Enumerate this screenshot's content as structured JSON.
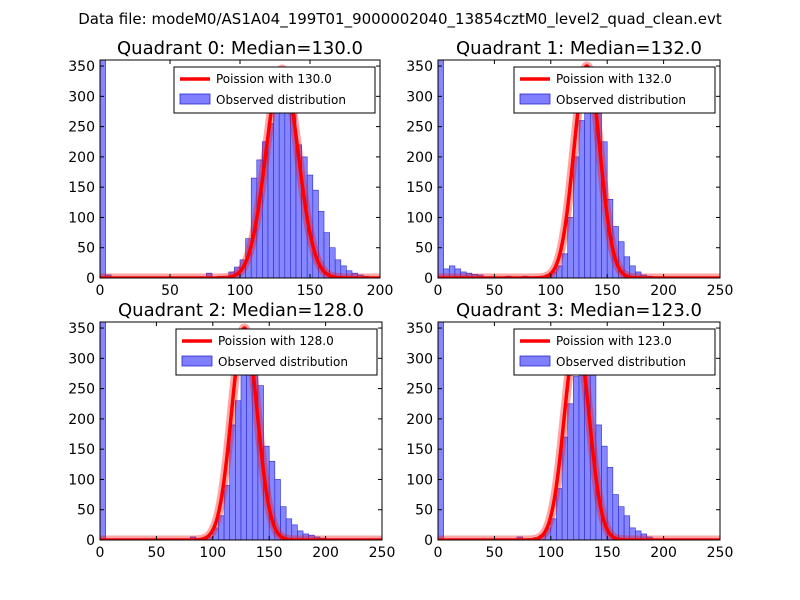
{
  "figure_title": "Data file: modeM0/AS1A04_199T01_9000002040_13854cztM0_level2_quad_clean.evt",
  "colors": {
    "poisson_line": "#ff0000",
    "bar_fill": "#7f7fff",
    "bar_edge": "#2a2ad0",
    "legend_edge": "#000000"
  },
  "chart_data": [
    {
      "type": "bar",
      "title": "Quadrant 0: Median=130.0",
      "xlim": [
        0,
        200
      ],
      "ylim": [
        0,
        360
      ],
      "xticks": [
        0,
        50,
        100,
        150,
        200
      ],
      "yticks": [
        0,
        50,
        100,
        150,
        200,
        250,
        300,
        350
      ],
      "legend": {
        "position": "top-right",
        "line_label": "Poission with 130.0",
        "bar_label": "Observed distribution"
      },
      "poisson_mean": 130,
      "poisson_peak": 345,
      "bin_width": 4,
      "bins": [
        [
          0,
          360
        ],
        [
          4,
          5
        ],
        [
          76,
          8
        ],
        [
          84,
          3
        ],
        [
          88,
          3
        ],
        [
          92,
          10
        ],
        [
          96,
          18
        ],
        [
          100,
          30
        ],
        [
          104,
          65
        ],
        [
          108,
          165
        ],
        [
          112,
          195
        ],
        [
          116,
          225
        ],
        [
          120,
          255
        ],
        [
          124,
          300
        ],
        [
          128,
          330
        ],
        [
          132,
          290
        ],
        [
          136,
          270
        ],
        [
          140,
          220
        ],
        [
          144,
          200
        ],
        [
          148,
          170
        ],
        [
          152,
          145
        ],
        [
          156,
          110
        ],
        [
          160,
          75
        ],
        [
          164,
          50
        ],
        [
          168,
          30
        ],
        [
          172,
          20
        ],
        [
          176,
          12
        ],
        [
          180,
          8
        ],
        [
          184,
          5
        ],
        [
          188,
          3
        ]
      ]
    },
    {
      "type": "bar",
      "title": "Quadrant 1: Median=132.0",
      "xlim": [
        0,
        250
      ],
      "ylim": [
        0,
        360
      ],
      "xticks": [
        0,
        50,
        100,
        150,
        200,
        250
      ],
      "yticks": [
        0,
        50,
        100,
        150,
        200,
        250,
        300,
        350
      ],
      "legend": {
        "position": "top-right",
        "line_label": "Poission with 132.0",
        "bar_label": "Observed distribution"
      },
      "poisson_mean": 132,
      "poisson_peak": 350,
      "bin_width": 5,
      "bins": [
        [
          0,
          360
        ],
        [
          5,
          15
        ],
        [
          10,
          20
        ],
        [
          15,
          15
        ],
        [
          20,
          10
        ],
        [
          25,
          8
        ],
        [
          30,
          6
        ],
        [
          35,
          5
        ],
        [
          40,
          2
        ],
        [
          45,
          2
        ],
        [
          50,
          2
        ],
        [
          55,
          2
        ],
        [
          60,
          3
        ],
        [
          65,
          2
        ],
        [
          70,
          2
        ],
        [
          75,
          3
        ],
        [
          80,
          2
        ],
        [
          85,
          2
        ],
        [
          90,
          3
        ],
        [
          95,
          5
        ],
        [
          100,
          10
        ],
        [
          105,
          20
        ],
        [
          110,
          40
        ],
        [
          115,
          100
        ],
        [
          120,
          200
        ],
        [
          125,
          260
        ],
        [
          130,
          340
        ],
        [
          135,
          315
        ],
        [
          140,
          290
        ],
        [
          145,
          225
        ],
        [
          150,
          130
        ],
        [
          155,
          85
        ],
        [
          160,
          60
        ],
        [
          165,
          35
        ],
        [
          170,
          20
        ],
        [
          175,
          10
        ],
        [
          180,
          5
        ],
        [
          185,
          3
        ],
        [
          190,
          2
        ]
      ]
    },
    {
      "type": "bar",
      "title": "Quadrant 2: Median=128.0",
      "xlim": [
        0,
        250
      ],
      "ylim": [
        0,
        360
      ],
      "xticks": [
        0,
        50,
        100,
        150,
        200,
        250
      ],
      "yticks": [
        0,
        50,
        100,
        150,
        200,
        250,
        300,
        350
      ],
      "legend": {
        "position": "top-right",
        "line_label": "Poission with 128.0",
        "bar_label": "Observed distribution"
      },
      "poisson_mean": 128,
      "poisson_peak": 350,
      "bin_width": 5,
      "bins": [
        [
          0,
          360
        ],
        [
          80,
          5
        ],
        [
          90,
          2
        ],
        [
          95,
          5
        ],
        [
          100,
          20
        ],
        [
          105,
          40
        ],
        [
          110,
          90
        ],
        [
          115,
          190
        ],
        [
          120,
          230
        ],
        [
          125,
          280
        ],
        [
          130,
          340
        ],
        [
          135,
          310
        ],
        [
          140,
          255
        ],
        [
          145,
          155
        ],
        [
          150,
          130
        ],
        [
          155,
          100
        ],
        [
          160,
          55
        ],
        [
          165,
          35
        ],
        [
          170,
          25
        ],
        [
          175,
          15
        ],
        [
          180,
          10
        ],
        [
          185,
          8
        ],
        [
          190,
          5
        ],
        [
          195,
          3
        ]
      ]
    },
    {
      "type": "bar",
      "title": "Quadrant 3: Median=123.0",
      "xlim": [
        0,
        250
      ],
      "ylim": [
        0,
        360
      ],
      "xticks": [
        0,
        50,
        100,
        150,
        200,
        250
      ],
      "yticks": [
        0,
        50,
        100,
        150,
        200,
        250,
        300,
        350
      ],
      "legend": {
        "position": "top-right",
        "line_label": "Poission with 123.0",
        "bar_label": "Observed distribution"
      },
      "poisson_mean": 123,
      "poisson_peak": 335,
      "bin_width": 5,
      "bins": [
        [
          0,
          360
        ],
        [
          70,
          5
        ],
        [
          80,
          2
        ],
        [
          85,
          4
        ],
        [
          90,
          8
        ],
        [
          95,
          20
        ],
        [
          100,
          35
        ],
        [
          105,
          85
        ],
        [
          110,
          170
        ],
        [
          115,
          225
        ],
        [
          120,
          270
        ],
        [
          125,
          330
        ],
        [
          130,
          315
        ],
        [
          135,
          285
        ],
        [
          140,
          190
        ],
        [
          145,
          155
        ],
        [
          150,
          120
        ],
        [
          155,
          75
        ],
        [
          160,
          55
        ],
        [
          165,
          40
        ],
        [
          170,
          20
        ],
        [
          175,
          15
        ],
        [
          180,
          10
        ],
        [
          185,
          5
        ],
        [
          190,
          2
        ]
      ]
    }
  ]
}
